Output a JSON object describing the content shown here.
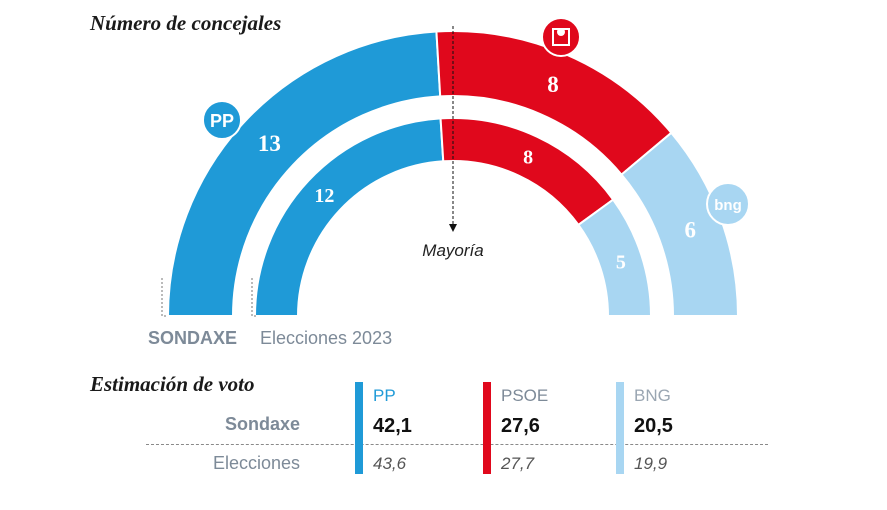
{
  "titles": {
    "seats": "Número de concejales",
    "vote": "Estimación de voto"
  },
  "chart_data": [
    {
      "type": "hemicycle",
      "majority_label": "Mayoría",
      "rings": [
        {
          "name": "SONDAXE",
          "seats": [
            {
              "party": "PP",
              "value": 13
            },
            {
              "party": "PSOE",
              "value": 8
            },
            {
              "party": "BNG",
              "value": 6
            }
          ]
        },
        {
          "name": "Elecciones 2023",
          "seats": [
            {
              "party": "PP",
              "value": 12
            },
            {
              "party": "PSOE",
              "value": 8
            },
            {
              "party": "BNG",
              "value": 5
            }
          ]
        }
      ],
      "logos": [
        {
          "party": "PP",
          "text": "PP"
        },
        {
          "party": "PSOE",
          "icon": "rose-fist-icon"
        },
        {
          "party": "BNG",
          "text": "bng"
        }
      ]
    },
    {
      "type": "table",
      "row_labels": [
        "Sondaxe",
        "Elecciones"
      ],
      "parties": [
        {
          "name": "PP",
          "sondaxe": "42,1",
          "elecciones": "43,6",
          "color": "#1f9ad7"
        },
        {
          "name": "PSOE",
          "sondaxe": "27,6",
          "elecciones": "27,7",
          "color": "#e0081c"
        },
        {
          "name": "BNG",
          "sondaxe": "20,5",
          "elecciones": "19,9",
          "color": "#a8d6f2"
        }
      ]
    }
  ],
  "colors": {
    "PP": "#1f9ad7",
    "PSOE": "#e0081c",
    "BNG": "#a8d6f2",
    "label_gray": "#7d8a98"
  }
}
